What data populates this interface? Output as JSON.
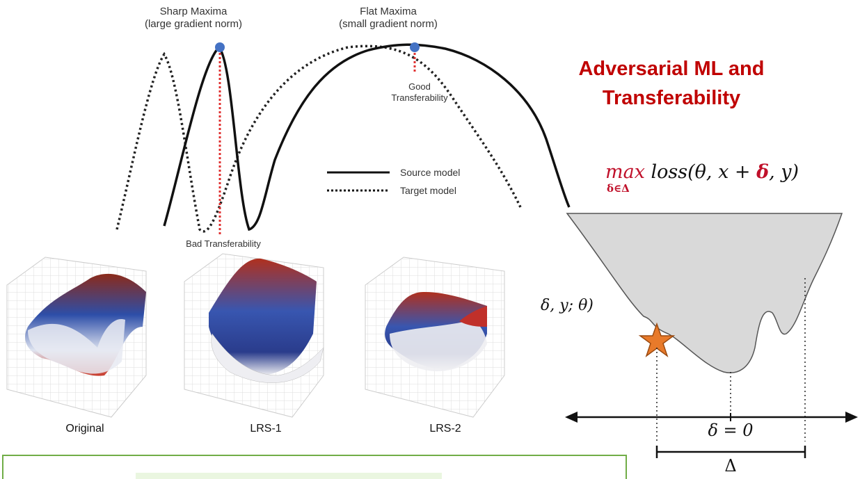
{
  "curve_labels": {
    "sharp_maxima": [
      "Sharp Maxima",
      "(large gradient norm)"
    ],
    "flat_maxima": [
      "Flat Maxima",
      "(small gradient norm)"
    ],
    "good_transfer": [
      "Good",
      "Transferability"
    ],
    "bad_transfer": "Bad Transferability"
  },
  "legend": {
    "source": "Source model",
    "target": "Target model"
  },
  "title": [
    "Adversarial ML and",
    "Transferability"
  ],
  "formula": {
    "max": "max",
    "subscript": "δ∈Δ",
    "pre": "loss(θ, x + ",
    "delta": "δ",
    "post": ", y)"
  },
  "partial_formula": "δ, y; θ)",
  "surfaces": [
    {
      "caption": "Original"
    },
    {
      "caption": "LRS-1"
    },
    {
      "caption": "LRS-2"
    }
  ],
  "axis_labels": {
    "delta_zero": "δ = 0",
    "delta_range": "Δ"
  },
  "colors": {
    "title_red": "#c00000",
    "max_point": "#4472c4",
    "dotted_red": "#e03030",
    "star": "#e87a2a",
    "box_border": "#70ad47",
    "basin_fill": "#d9d9d9"
  }
}
